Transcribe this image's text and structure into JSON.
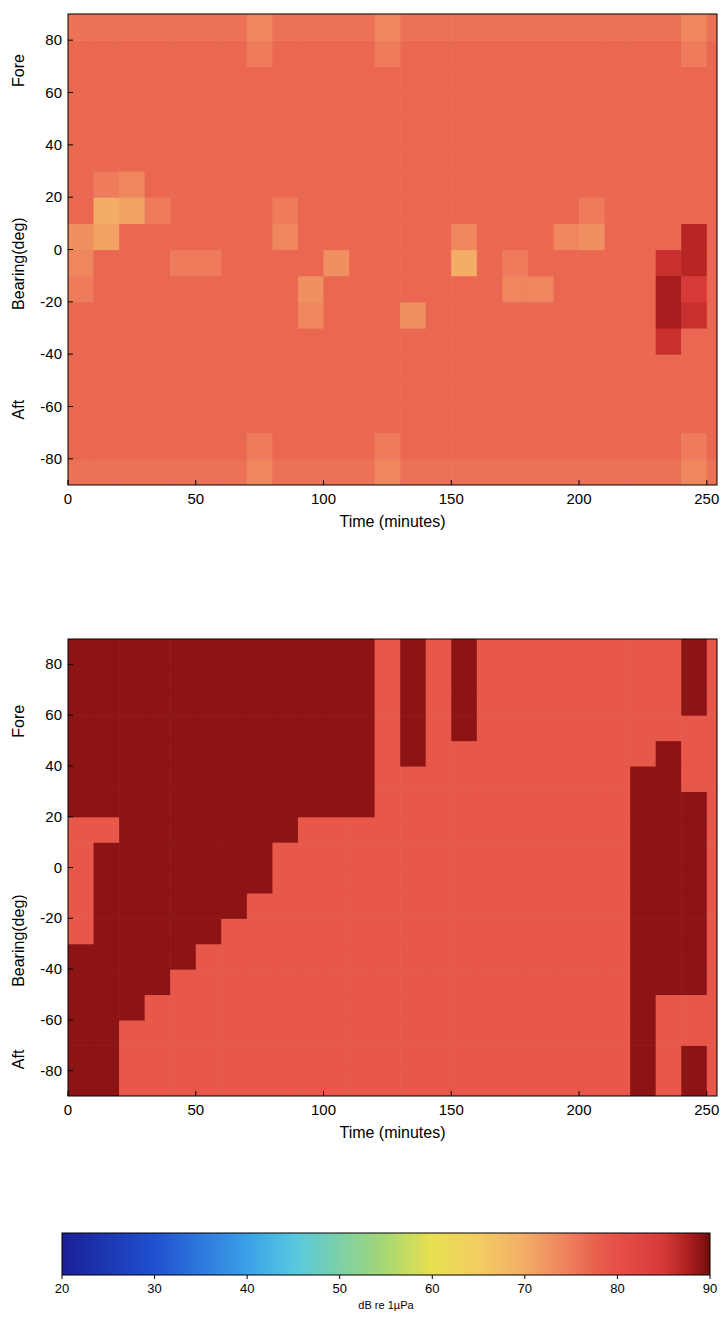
{
  "chart_data": {
    "type": "heatmap",
    "panels": [
      {
        "xlabel": "Time (minutes)",
        "ylabel": "Bearing(deg)",
        "annotations": [
          "Fore",
          "Aft"
        ],
        "xlim": [
          0,
          254
        ],
        "ylim": [
          -90,
          90
        ],
        "xticks": [
          0,
          50,
          100,
          150,
          200,
          250
        ],
        "yticks": [
          -80,
          -60,
          -40,
          -20,
          0,
          20,
          40,
          60,
          80
        ],
        "x": [
          5,
          15,
          25,
          35,
          45,
          55,
          65,
          75,
          85,
          95,
          105,
          115,
          125,
          135,
          145,
          155,
          165,
          175,
          185,
          195,
          205,
          215,
          225,
          235,
          245,
          255
        ],
        "y": [
          -85,
          -75,
          -65,
          -55,
          -45,
          -35,
          -25,
          -15,
          -5,
          5,
          15,
          25,
          35,
          45,
          55,
          65,
          75,
          85
        ],
        "z": [
          [
            76,
            76,
            76,
            76,
            76,
            76,
            76,
            74,
            76,
            76,
            76,
            76,
            74,
            76,
            76,
            76,
            76,
            76,
            76,
            76,
            76,
            76,
            76,
            76,
            74,
            76
          ],
          [
            77,
            77,
            77,
            77,
            77,
            77,
            77,
            75,
            77,
            77,
            77,
            77,
            75,
            77,
            77,
            77,
            77,
            77,
            77,
            77,
            77,
            77,
            77,
            77,
            75,
            77
          ],
          [
            77,
            77,
            77,
            77,
            77,
            77,
            77,
            77,
            77,
            77,
            77,
            77,
            77,
            77,
            77,
            77,
            77,
            77,
            77,
            77,
            77,
            77,
            77,
            77,
            77,
            77
          ],
          [
            77,
            77,
            77,
            77,
            77,
            77,
            77,
            77,
            77,
            77,
            77,
            77,
            77,
            77,
            77,
            77,
            77,
            77,
            77,
            77,
            77,
            77,
            77,
            77,
            77,
            77
          ],
          [
            77,
            77,
            77,
            77,
            77,
            77,
            77,
            77,
            77,
            77,
            77,
            77,
            77,
            77,
            77,
            77,
            77,
            77,
            77,
            77,
            77,
            77,
            77,
            77,
            77,
            77
          ],
          [
            77,
            77,
            77,
            77,
            77,
            77,
            77,
            77,
            77,
            77,
            77,
            77,
            77,
            77,
            77,
            77,
            77,
            77,
            77,
            77,
            77,
            77,
            77,
            86,
            77,
            77
          ],
          [
            77,
            77,
            77,
            77,
            77,
            77,
            77,
            77,
            77,
            74,
            77,
            77,
            77,
            73,
            77,
            77,
            77,
            77,
            77,
            77,
            77,
            77,
            77,
            88,
            86,
            77
          ],
          [
            75,
            77,
            77,
            77,
            77,
            77,
            77,
            77,
            77,
            73,
            77,
            77,
            77,
            77,
            77,
            77,
            77,
            74,
            74,
            77,
            77,
            77,
            77,
            88,
            85,
            77
          ],
          [
            74,
            77,
            77,
            77,
            75,
            75,
            77,
            77,
            77,
            77,
            73,
            77,
            77,
            77,
            77,
            70,
            77,
            75,
            77,
            77,
            77,
            77,
            77,
            86,
            87,
            77
          ],
          [
            73,
            71,
            77,
            77,
            77,
            77,
            77,
            77,
            74,
            77,
            77,
            77,
            77,
            77,
            77,
            74,
            77,
            77,
            77,
            74,
            73,
            77,
            77,
            77,
            87,
            77
          ],
          [
            77,
            70,
            71,
            75,
            77,
            77,
            77,
            77,
            75,
            77,
            77,
            77,
            77,
            77,
            77,
            77,
            77,
            77,
            77,
            77,
            75,
            77,
            77,
            77,
            77,
            77
          ],
          [
            77,
            75,
            74,
            77,
            77,
            77,
            77,
            77,
            77,
            77,
            77,
            77,
            77,
            77,
            77,
            77,
            77,
            77,
            77,
            77,
            77,
            77,
            77,
            77,
            77,
            77
          ],
          [
            77,
            77,
            77,
            77,
            77,
            77,
            77,
            77,
            77,
            77,
            77,
            77,
            77,
            77,
            77,
            77,
            77,
            77,
            77,
            77,
            77,
            77,
            77,
            77,
            77,
            77
          ],
          [
            77,
            77,
            77,
            77,
            77,
            77,
            77,
            77,
            77,
            77,
            77,
            77,
            77,
            77,
            77,
            77,
            77,
            77,
            77,
            77,
            77,
            77,
            77,
            77,
            77,
            77
          ],
          [
            77,
            77,
            77,
            77,
            77,
            77,
            77,
            77,
            77,
            77,
            77,
            77,
            77,
            77,
            77,
            77,
            77,
            77,
            77,
            77,
            77,
            77,
            77,
            77,
            77,
            77
          ],
          [
            77,
            77,
            77,
            77,
            77,
            77,
            77,
            77,
            77,
            77,
            77,
            77,
            77,
            77,
            77,
            77,
            77,
            77,
            77,
            77,
            77,
            77,
            77,
            77,
            77,
            77
          ],
          [
            77,
            77,
            77,
            77,
            77,
            77,
            77,
            75,
            77,
            77,
            77,
            77,
            75,
            77,
            77,
            77,
            77,
            77,
            77,
            77,
            77,
            77,
            77,
            77,
            75,
            77
          ],
          [
            76,
            76,
            76,
            76,
            76,
            76,
            76,
            74,
            76,
            76,
            76,
            76,
            74,
            76,
            76,
            76,
            76,
            76,
            76,
            76,
            76,
            76,
            76,
            76,
            74,
            76
          ]
        ]
      },
      {
        "xlabel": "Time (minutes)",
        "ylabel": "Bearing(deg)",
        "annotations": [
          "Fore",
          "Aft"
        ],
        "xlim": [
          0,
          254
        ],
        "ylim": [
          -90,
          90
        ],
        "xticks": [
          0,
          50,
          100,
          150,
          200,
          250
        ],
        "yticks": [
          -80,
          -60,
          -40,
          -20,
          0,
          20,
          40,
          60,
          80
        ],
        "x": [
          5,
          15,
          25,
          35,
          45,
          55,
          65,
          75,
          85,
          95,
          105,
          115,
          125,
          135,
          145,
          155,
          165,
          175,
          185,
          195,
          205,
          215,
          225,
          235,
          245,
          255
        ],
        "y": [
          -85,
          -75,
          -65,
          -55,
          -45,
          -35,
          -25,
          -15,
          -5,
          5,
          15,
          25,
          35,
          45,
          55,
          65,
          75,
          85
        ],
        "z": [
          [
            89,
            89,
            79,
            79,
            79,
            79,
            79,
            79,
            79,
            79,
            79,
            79,
            79,
            79,
            79,
            79,
            79,
            79,
            79,
            79,
            79,
            79,
            89,
            79,
            89,
            79
          ],
          [
            89,
            89,
            79,
            79,
            79,
            79,
            79,
            79,
            79,
            79,
            79,
            79,
            79,
            79,
            79,
            79,
            79,
            79,
            79,
            79,
            79,
            79,
            89,
            79,
            89,
            79
          ],
          [
            89,
            89,
            79,
            79,
            79,
            79,
            79,
            79,
            79,
            79,
            79,
            79,
            79,
            79,
            79,
            79,
            79,
            79,
            79,
            79,
            79,
            79,
            89,
            79,
            79,
            79
          ],
          [
            89,
            89,
            89,
            79,
            79,
            79,
            79,
            79,
            79,
            79,
            79,
            79,
            79,
            79,
            79,
            79,
            79,
            79,
            79,
            79,
            79,
            79,
            89,
            79,
            79,
            79
          ],
          [
            89,
            89,
            89,
            89,
            79,
            79,
            79,
            79,
            79,
            79,
            79,
            79,
            79,
            79,
            79,
            79,
            79,
            79,
            79,
            79,
            79,
            79,
            89,
            89,
            89,
            79
          ],
          [
            89,
            89,
            89,
            89,
            89,
            79,
            79,
            79,
            79,
            79,
            79,
            79,
            79,
            79,
            79,
            79,
            79,
            79,
            79,
            79,
            79,
            79,
            89,
            89,
            89,
            79
          ],
          [
            79,
            89,
            89,
            89,
            89,
            89,
            79,
            79,
            79,
            79,
            79,
            79,
            79,
            79,
            79,
            79,
            79,
            79,
            79,
            79,
            79,
            79,
            89,
            89,
            89,
            79
          ],
          [
            79,
            89,
            89,
            89,
            89,
            89,
            89,
            79,
            79,
            79,
            79,
            79,
            79,
            79,
            79,
            79,
            79,
            79,
            79,
            79,
            79,
            79,
            89,
            89,
            89,
            79
          ],
          [
            79,
            89,
            89,
            89,
            89,
            89,
            89,
            89,
            79,
            79,
            79,
            79,
            79,
            79,
            79,
            79,
            79,
            79,
            79,
            79,
            79,
            79,
            89,
            89,
            89,
            79
          ],
          [
            79,
            89,
            89,
            89,
            89,
            89,
            89,
            89,
            79,
            79,
            79,
            79,
            79,
            79,
            79,
            79,
            79,
            79,
            79,
            79,
            79,
            79,
            89,
            89,
            89,
            79
          ],
          [
            79,
            79,
            89,
            89,
            89,
            89,
            89,
            89,
            89,
            79,
            79,
            79,
            79,
            79,
            79,
            79,
            79,
            79,
            79,
            79,
            79,
            79,
            89,
            89,
            89,
            79
          ],
          [
            89,
            89,
            89,
            89,
            89,
            89,
            89,
            89,
            89,
            89,
            89,
            89,
            79,
            79,
            79,
            79,
            79,
            79,
            79,
            79,
            79,
            79,
            89,
            89,
            89,
            79
          ],
          [
            89,
            89,
            89,
            89,
            89,
            89,
            89,
            89,
            89,
            89,
            89,
            89,
            79,
            79,
            79,
            79,
            79,
            79,
            79,
            79,
            79,
            79,
            89,
            89,
            79,
            79
          ],
          [
            89,
            89,
            89,
            89,
            89,
            89,
            89,
            89,
            89,
            89,
            89,
            89,
            79,
            89,
            79,
            79,
            79,
            79,
            79,
            79,
            79,
            79,
            79,
            89,
            79,
            79
          ],
          [
            89,
            89,
            89,
            89,
            89,
            89,
            89,
            89,
            89,
            89,
            89,
            89,
            79,
            89,
            79,
            89,
            79,
            79,
            79,
            79,
            79,
            79,
            79,
            79,
            79,
            79
          ],
          [
            89,
            89,
            89,
            89,
            89,
            89,
            89,
            89,
            89,
            89,
            89,
            89,
            79,
            89,
            79,
            89,
            79,
            79,
            79,
            79,
            79,
            79,
            79,
            79,
            89,
            79
          ],
          [
            89,
            89,
            89,
            89,
            89,
            89,
            89,
            89,
            89,
            89,
            89,
            89,
            79,
            89,
            79,
            89,
            79,
            79,
            79,
            79,
            79,
            79,
            79,
            79,
            89,
            79
          ],
          [
            89,
            89,
            89,
            89,
            89,
            89,
            89,
            89,
            89,
            89,
            89,
            89,
            79,
            89,
            79,
            89,
            79,
            79,
            79,
            79,
            79,
            79,
            79,
            79,
            89,
            79
          ]
        ]
      }
    ],
    "colorbar": {
      "range": [
        20,
        90
      ],
      "ticks": [
        20,
        30,
        40,
        50,
        60,
        70,
        80,
        90
      ],
      "label": "dB re 1µPa"
    }
  }
}
